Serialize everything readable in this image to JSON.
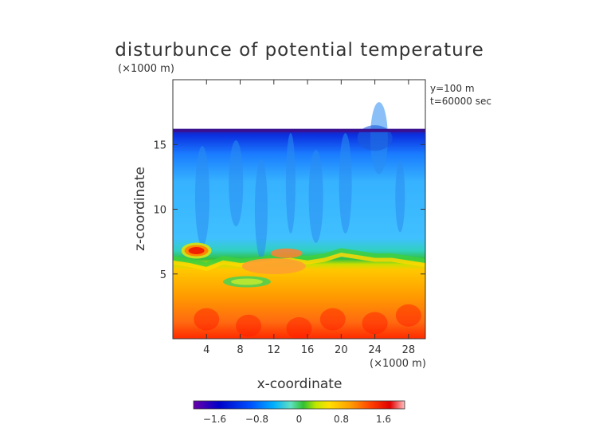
{
  "chart_data": {
    "type": "heatmap",
    "title": "disturbunce of potential temperature",
    "z_unit_label": "(×1000 m)",
    "x_unit_label": "(×1000 m)",
    "xlabel": "x-coordinate",
    "ylabel": "z-coordinate",
    "annotations": [
      "y=100 m",
      "t=60000 sec"
    ],
    "x_range": [
      0,
      30
    ],
    "z_range": [
      0,
      20
    ],
    "x_ticks": [
      4,
      8,
      12,
      16,
      20,
      24,
      28
    ],
    "z_ticks": [
      5,
      10,
      15
    ],
    "field_top": 16.2,
    "colorbar": {
      "range": [
        -2,
        2
      ],
      "ticks": [
        "−1.6",
        "−0.8",
        "0",
        "0.8",
        "1.6"
      ],
      "tick_values": [
        -1.6,
        -0.8,
        0,
        0.8,
        1.6
      ],
      "colors": [
        "#7a00a0",
        "#0000c8",
        "#0050ff",
        "#00b0ff",
        "#60e0c0",
        "#30c030",
        "#a0e000",
        "#ffe000",
        "#ffa000",
        "#ff5000",
        "#e00000",
        "#ffb0b0"
      ]
    },
    "regions": [
      {
        "name": "upper cold layer",
        "z_from": 7.0,
        "z_to": 16.2,
        "value": -1.0
      },
      {
        "name": "top edge",
        "z_from": 15.6,
        "z_to": 16.2,
        "value": -1.6
      },
      {
        "name": "transition layer",
        "z_from": 5.8,
        "z_to": 7.0,
        "value": 0.0
      },
      {
        "name": "lower warm layer",
        "z_from": 0.0,
        "z_to": 5.8,
        "value": 1.0
      },
      {
        "name": "warm bubble",
        "x_center": 2.8,
        "z_center": 6.8,
        "value": 1.6
      }
    ]
  }
}
